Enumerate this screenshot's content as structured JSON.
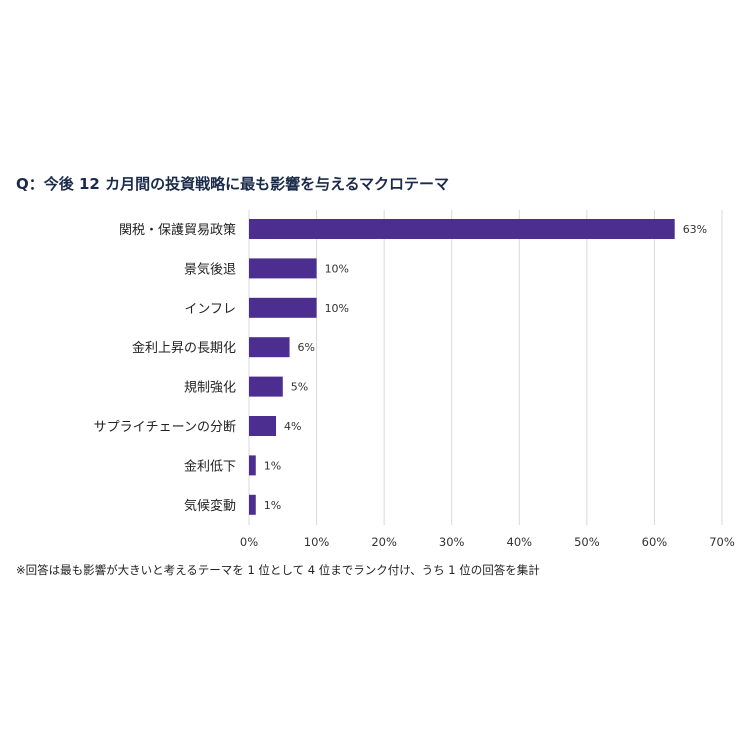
{
  "chart_data": {
    "type": "bar",
    "orientation": "horizontal",
    "title": "Q：今後 12 カ月間の投資戦略に最も影響を与えるマクロテーマ",
    "categories": [
      "関税・保護貿易政策",
      "景気後退",
      "インフレ",
      "金利上昇の長期化",
      "規制強化",
      "サプライチェーンの分断",
      "金利低下",
      "気候変動"
    ],
    "values": [
      63,
      10,
      10,
      6,
      5,
      4,
      1,
      1
    ],
    "data_labels": [
      "63%",
      "10%",
      "10%",
      "6%",
      "5%",
      "4%",
      "1%",
      "1%"
    ],
    "xlim": [
      0,
      70
    ],
    "x_ticks": [
      "0%",
      "10%",
      "20%",
      "30%",
      "40%",
      "50%",
      "60%",
      "70%"
    ],
    "grid": "vertical",
    "bar_color": "#4b2e8f",
    "footnote": "※回答は最も影響が大きいと考えるテーマを 1 位として 4 位までランク付け、うち 1 位の回答を集計"
  }
}
